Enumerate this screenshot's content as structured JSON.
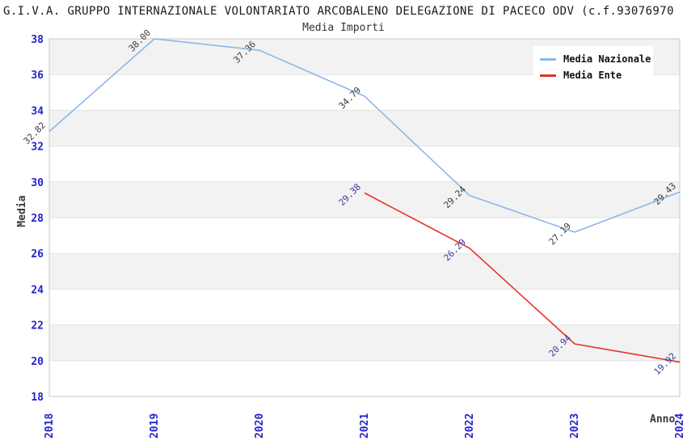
{
  "title": "G.I.V.A. GRUPPO INTERNAZIONALE VOLONTARIATO ARCOBALENO DELEGAZIONE DI PACECO ODV (c.f.93076970",
  "chart_data": {
    "type": "line",
    "title": "Media Importi",
    "xlabel": "Anno",
    "ylabel": "Media",
    "categories": [
      "2018",
      "2019",
      "2020",
      "2021",
      "2022",
      "2023",
      "2024"
    ],
    "series": [
      {
        "name": "Media Nazionale",
        "color": "#8cb7e8",
        "label_color": "#3c3c3c",
        "values": [
          32.82,
          38.0,
          37.36,
          34.79,
          29.24,
          27.19,
          29.43
        ]
      },
      {
        "name": "Media Ente",
        "color": "#e8322d",
        "label_color": "#3a3a9c",
        "values": [
          null,
          null,
          null,
          29.38,
          26.29,
          20.94,
          19.92
        ]
      }
    ],
    "ylim": [
      18,
      38
    ],
    "ytick_step": 2,
    "grid": "horizontal-bands",
    "legend_position": "top-right",
    "value_label_decimals": 2
  },
  "colors": {
    "background": "#ffffff",
    "band": "#f2f2f2",
    "grid": "#e3e3e3",
    "border": "#c9c9c9",
    "tick": "#2424cc"
  }
}
